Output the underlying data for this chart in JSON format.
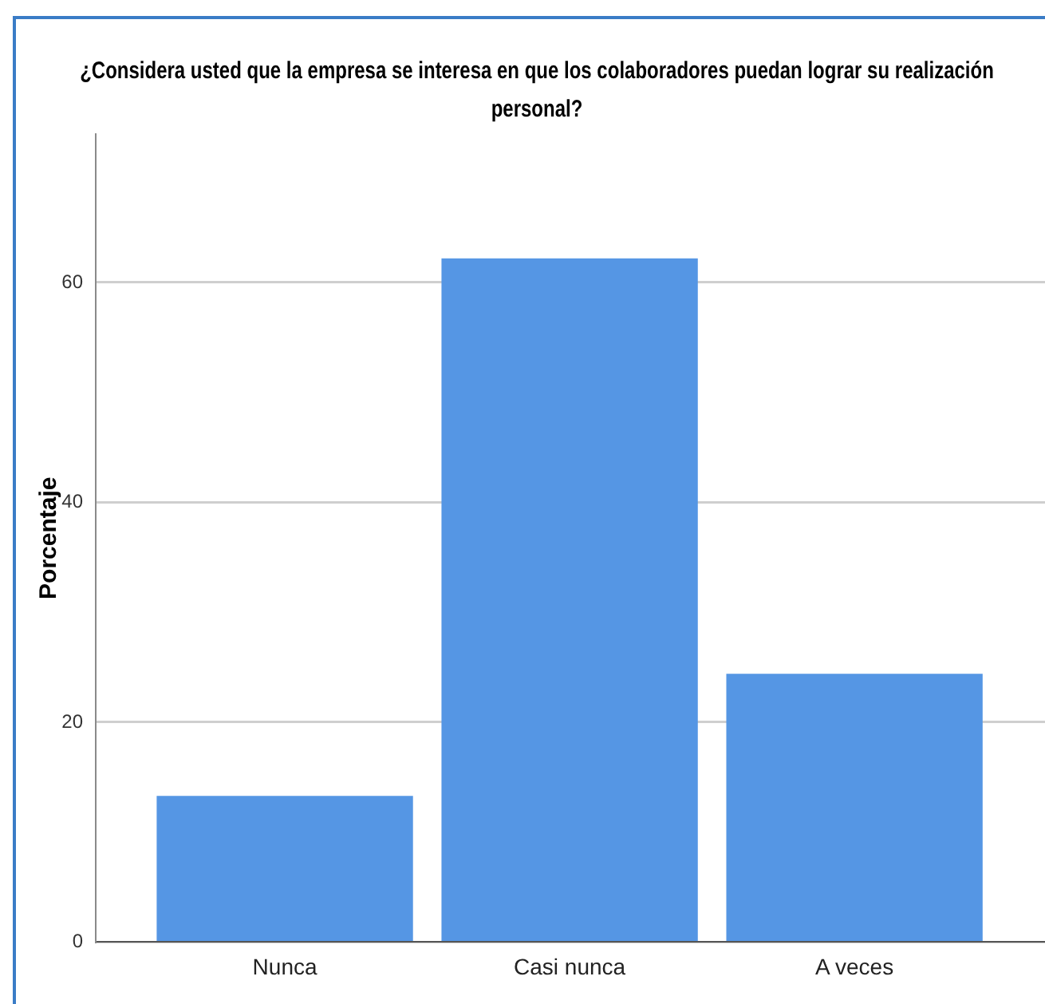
{
  "chart_data": {
    "type": "bar",
    "title": "¿Considera usted que la empresa se interesa en que los colaboradores puedan lograr su realización personal?",
    "ylabel": "Porcentaje",
    "categories": [
      "Nunca",
      "Casi nunca",
      "A veces"
    ],
    "values": [
      13.3,
      62.2,
      24.4
    ],
    "color": "#5596e4",
    "ylim": [
      0,
      73.5
    ],
    "yticks": [
      0,
      20,
      40,
      60
    ],
    "grid": "y"
  }
}
